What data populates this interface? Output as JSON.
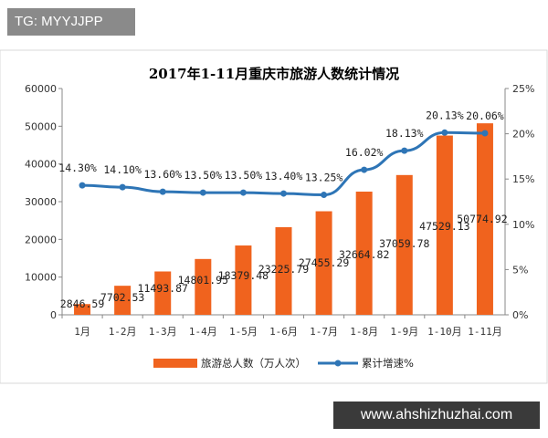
{
  "watermark_tag": "TG: MYYJJPP",
  "site_url": "www.ahshizhuzhai.com",
  "chart_data": {
    "type": "bar+line",
    "title": "2017年1-11月重庆市旅游人数统计情况",
    "categories": [
      "1月",
      "1-2月",
      "1-3月",
      "1-4月",
      "1-5月",
      "1-6月",
      "1-7月",
      "1-8月",
      "1-9月",
      "1-10月",
      "1-11月"
    ],
    "series": [
      {
        "name": "旅游总人数（万人次）",
        "type": "bar",
        "axis": "left",
        "color": "#f0631e",
        "values": [
          2846.59,
          7702.53,
          11493.87,
          14801.95,
          18379.48,
          23225.79,
          27455.29,
          32664.82,
          37059.78,
          47529.13,
          50774.92
        ],
        "labels": [
          "2846.59",
          "7702.53",
          "11493.87",
          "14801.95",
          "18379.48",
          "23225.79",
          "27455.29",
          "32664.82",
          "37059.78",
          "47529.13",
          "50774.92"
        ]
      },
      {
        "name": "累计增速%",
        "type": "line",
        "axis": "right",
        "color": "#2e75b6",
        "values": [
          14.3,
          14.1,
          13.6,
          13.5,
          13.5,
          13.4,
          13.25,
          16.02,
          18.13,
          20.13,
          20.06
        ],
        "labels": [
          "14.30%",
          "14.10%",
          "13.60%",
          "13.50%",
          "13.50%",
          "13.40%",
          "13.25%",
          "16.02%",
          "18.13%",
          "20.13%",
          "20.06%"
        ]
      }
    ],
    "left_axis": {
      "ylim": [
        0,
        60000
      ],
      "ticks": [
        "0",
        "10000",
        "20000",
        "30000",
        "40000",
        "50000",
        "60000"
      ]
    },
    "right_axis": {
      "ylim": [
        0,
        25
      ],
      "ticks": [
        "0%",
        "5%",
        "10%",
        "15%",
        "20%",
        "25%"
      ]
    },
    "grid": false,
    "legend_placement": "bottom"
  }
}
